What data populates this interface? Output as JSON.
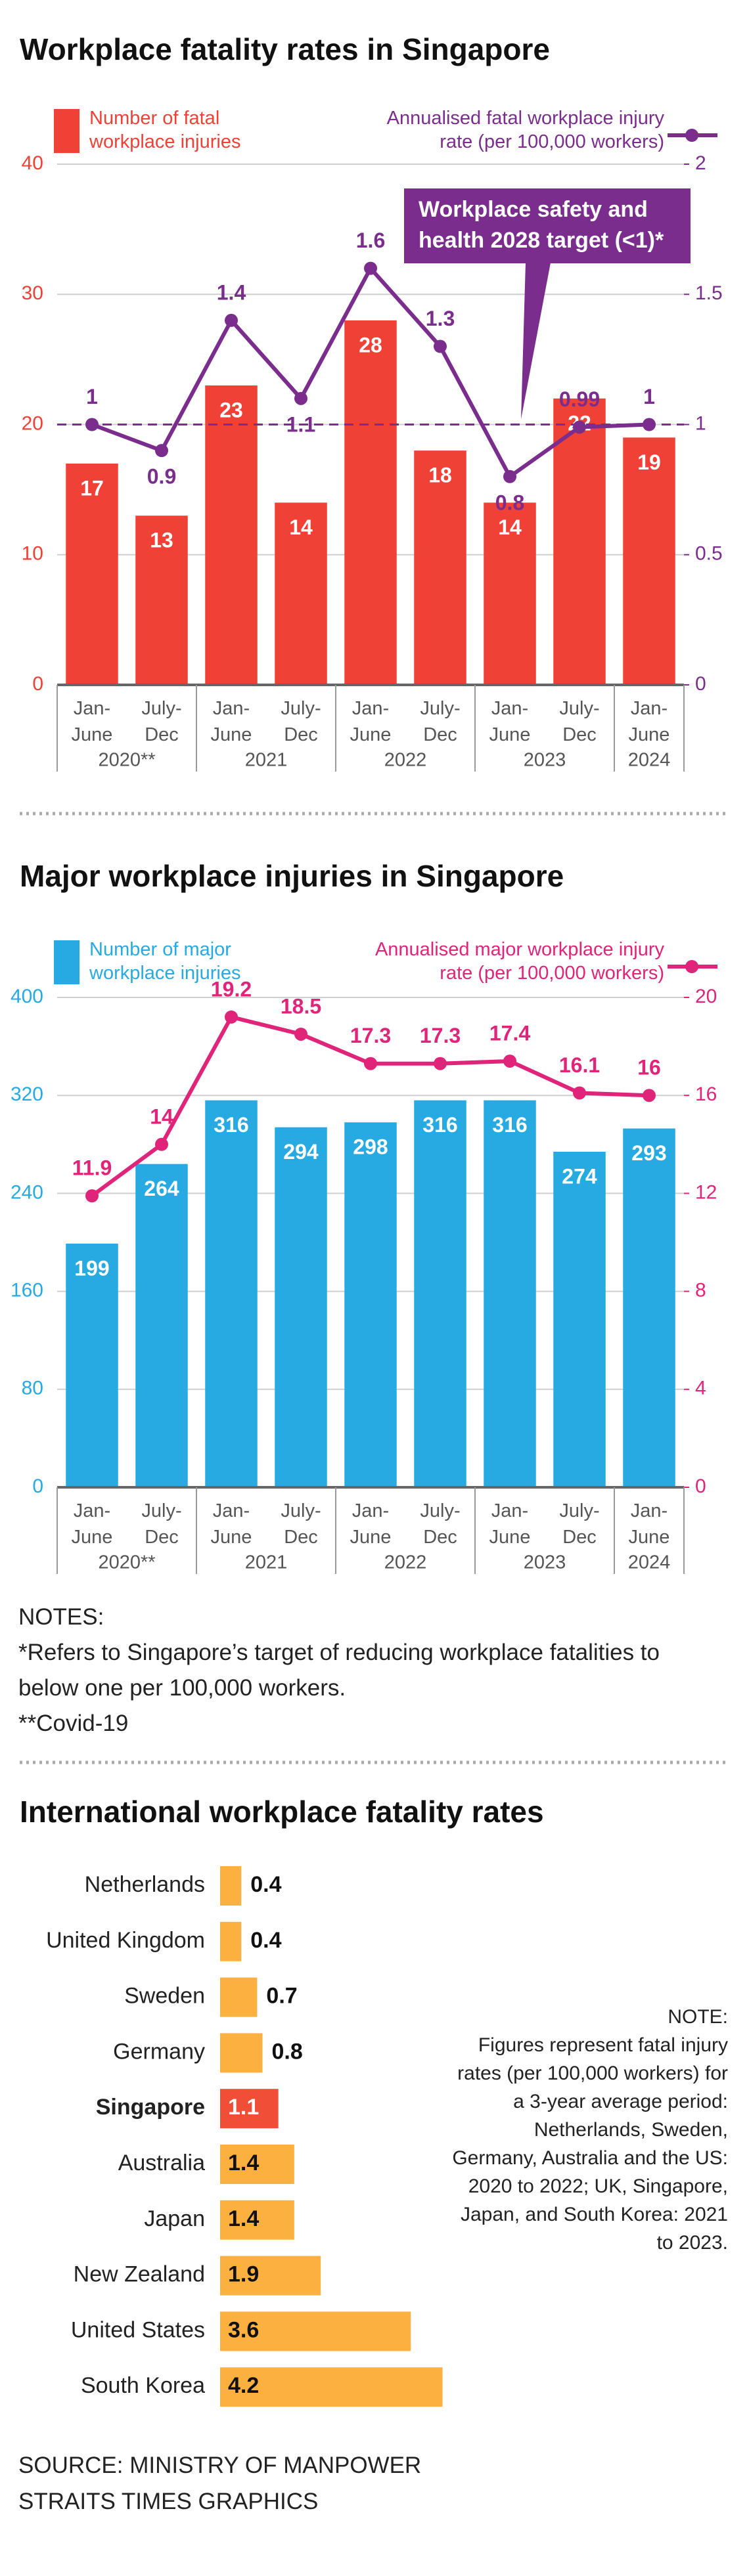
{
  "chart_data": [
    {
      "type": "bar-line",
      "title": "Workplace fatality rates in Singapore",
      "categories": [
        "Jan-June",
        "July-Dec",
        "Jan-June",
        "July-Dec",
        "Jan-June",
        "July-Dec",
        "Jan-June",
        "July-Dec",
        "Jan-June"
      ],
      "year_labels": [
        "2020**",
        "2021",
        "2022",
        "2023",
        "2024"
      ],
      "series": [
        {
          "name": "Number of fatal workplace injuries",
          "color": "#ef4136",
          "values": [
            17,
            13,
            23,
            14,
            28,
            18,
            14,
            22,
            19
          ]
        },
        {
          "name": "Annualised fatal workplace injury rate (per 100,000 workers)",
          "color": "#7b2d8e",
          "axis": "y2",
          "values": [
            1,
            0.9,
            1.4,
            1.1,
            1.6,
            1.3,
            0.8,
            0.99,
            1
          ]
        }
      ],
      "ylim": [
        0,
        40
      ],
      "yticks": [
        0,
        10,
        20,
        30,
        40
      ],
      "y2lim": [
        0,
        2
      ],
      "y2ticks": [
        0,
        0.5,
        1,
        1.5,
        2
      ],
      "target": {
        "value": 1,
        "label": "Workplace safety and health 2028 target (<1)*"
      },
      "grid": true
    },
    {
      "type": "bar-line",
      "title": "Major workplace injuries in Singapore",
      "categories": [
        "Jan-June",
        "July-Dec",
        "Jan-June",
        "July-Dec",
        "Jan-June",
        "July-Dec",
        "Jan-June",
        "July-Dec",
        "Jan-June"
      ],
      "year_labels": [
        "2020**",
        "2021",
        "2022",
        "2023",
        "2024"
      ],
      "series": [
        {
          "name": "Number of major workplace injuries",
          "color": "#27aae1",
          "values": [
            199,
            264,
            316,
            294,
            298,
            316,
            316,
            274,
            293
          ]
        },
        {
          "name": "Annualised major workplace injury rate (per 100,000 workers)",
          "color": "#e0247a",
          "axis": "y2",
          "values": [
            11.9,
            14,
            19.2,
            18.5,
            17.3,
            17.3,
            17.4,
            16.1,
            16
          ]
        }
      ],
      "ylim": [
        0,
        400
      ],
      "yticks": [
        0,
        80,
        160,
        240,
        320,
        400
      ],
      "y2lim": [
        0,
        20
      ],
      "y2ticks": [
        0,
        4,
        8,
        12,
        16,
        20
      ],
      "grid": true
    },
    {
      "type": "hbar",
      "title": "International workplace fatality rates",
      "categories": [
        "Netherlands",
        "United Kingdom",
        "Sweden",
        "Germany",
        "Singapore",
        "Australia",
        "Japan",
        "New Zealand",
        "United States",
        "South Korea"
      ],
      "values": [
        0.4,
        0.4,
        0.7,
        0.8,
        1.1,
        1.4,
        1.4,
        1.9,
        3.6,
        4.2
      ],
      "colors": [
        "#fbb040",
        "#fbb040",
        "#fbb040",
        "#fbb040",
        "#f04e37",
        "#fbb040",
        "#fbb040",
        "#fbb040",
        "#fbb040",
        "#fbb040"
      ],
      "highlight": "Singapore",
      "note_title": "NOTE:",
      "note": "Figures represent fatal injury rates (per 100,000 workers) for a 3-year average period: Netherlands, Sweden, Germany, Australia and the US: 2020 to 2022; UK, Singapore, Japan, and South Korea: 2021 to 2023."
    }
  ],
  "notes": [
    "NOTES:",
    "*Refers to Singapore’s target of reducing workplace fatalities to below one per 100,000 workers.",
    "**Covid-19"
  ],
  "source": [
    "SOURCE: MINISTRY OF MANPOWER",
    "STRAITS TIMES GRAPHICS"
  ]
}
